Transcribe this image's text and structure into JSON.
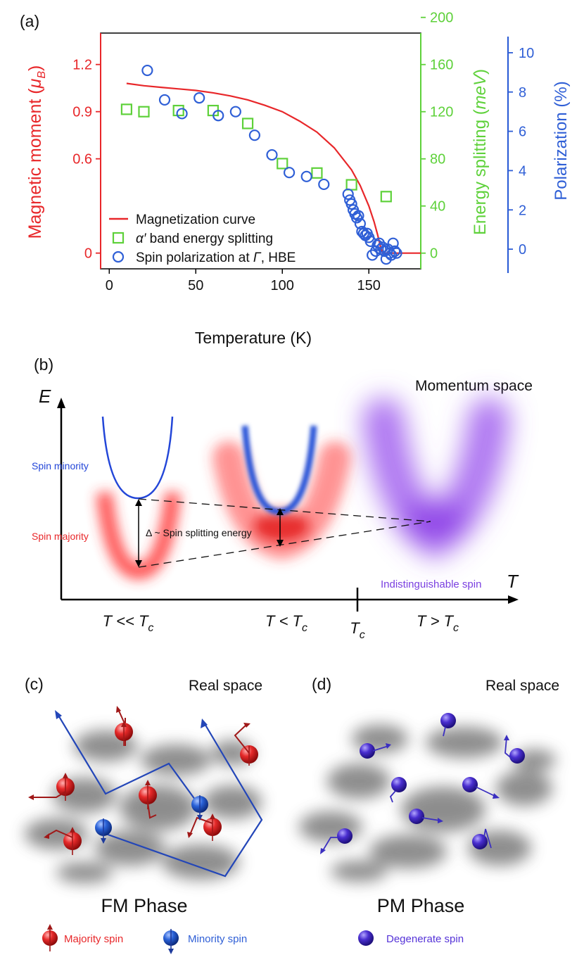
{
  "panel_a": {
    "label": "(a)",
    "chart_data": {
      "type": "scatter",
      "xlabel": "Temperature (K)",
      "xlim": [
        -5,
        180
      ],
      "xticks": [
        0,
        50,
        100,
        150
      ],
      "left_axis": {
        "label_prefix": "Magnetic moment (",
        "label_unit": "μ",
        "label_sub": "B",
        "label_suffix": ")",
        "color": "#e8272a",
        "ylim": [
          -0.1,
          1.4
        ],
        "ticks": [
          0,
          0.6,
          0.9,
          1.2
        ],
        "tick_labels": [
          "0",
          "0.6",
          "0.9",
          "1.2"
        ]
      },
      "middle_axis": {
        "label_prefix": "Energy splitting (",
        "label_unit": "meV",
        "label_suffix": ")",
        "color": "#5ed13a",
        "ylim": [
          -13.3,
          186.7
        ],
        "ticks": [
          0,
          40,
          80,
          120,
          160,
          200
        ],
        "tick_labels": [
          "0",
          "40",
          "80",
          "120",
          "160",
          "200"
        ]
      },
      "right_axis": {
        "label": "Polarization (%)",
        "color": "#2f5fd6",
        "ylim": [
          -1,
          11
        ],
        "ticks": [
          0,
          2,
          4,
          6,
          8,
          10
        ],
        "tick_labels": [
          "0",
          "2",
          "4",
          "6",
          "8",
          "10"
        ]
      },
      "series": [
        {
          "name": "Magnetization curve",
          "kind": "line",
          "axis": "left",
          "color": "#e8272a",
          "x": [
            10,
            20,
            30,
            40,
            50,
            60,
            70,
            80,
            90,
            100,
            110,
            120,
            130,
            140,
            145,
            150,
            153,
            155,
            157,
            158,
            160,
            170,
            180
          ],
          "y": [
            1.08,
            1.065,
            1.055,
            1.045,
            1.035,
            1.02,
            1.0,
            0.975,
            0.94,
            0.9,
            0.84,
            0.77,
            0.67,
            0.53,
            0.43,
            0.3,
            0.2,
            0.12,
            0.03,
            0.0,
            0.0,
            0.0,
            0.0
          ]
        },
        {
          "name": "α′ band energy splitting",
          "kind": "square",
          "axis": "middle",
          "color": "#5ed13a",
          "x": [
            10,
            20,
            40,
            60,
            80,
            100,
            120,
            140,
            160
          ],
          "y": [
            122,
            120,
            121,
            121,
            110,
            76,
            68,
            58,
            48
          ]
        },
        {
          "name": "Spin polarization at Γ, HBE",
          "kind": "circle",
          "axis": "right",
          "color": "#2f5fd6",
          "x": [
            22,
            32,
            42,
            52,
            63,
            73,
            84,
            94,
            104,
            114,
            124,
            138,
            139,
            140,
            141,
            142,
            143,
            144,
            145,
            146,
            147,
            148,
            149,
            150,
            151,
            152,
            154,
            155,
            156,
            157,
            158,
            159,
            160,
            161,
            162,
            163,
            164,
            165,
            166
          ],
          "y": [
            9.1,
            7.6,
            6.9,
            7.7,
            6.8,
            7.0,
            5.8,
            4.8,
            3.9,
            3.7,
            3.3,
            2.8,
            2.5,
            2.3,
            2.0,
            1.8,
            1.6,
            1.7,
            1.3,
            0.9,
            0.8,
            0.7,
            0.8,
            0.6,
            0.4,
            -0.3,
            -0.1,
            0.2,
            0.3,
            0.0,
            0.1,
            -0.1,
            -0.5,
            0.0,
            -0.2,
            -0.3,
            0.3,
            -0.1,
            -0.2
          ]
        }
      ],
      "legend": {
        "placement": "bottom-left",
        "items": [
          {
            "label": "Magnetization curve",
            "color": "#e8272a",
            "kind": "line"
          },
          {
            "label_prefix": "α′",
            "label_rest": " band energy splitting",
            "color": "#5ed13a",
            "kind": "square"
          },
          {
            "label_prefix": "Spin polarization at ",
            "label_italic": "Γ",
            "label_rest": ", HBE",
            "color": "#2f5fd6",
            "kind": "circle"
          }
        ]
      }
    }
  },
  "panel_b": {
    "label": "(b)",
    "title": "Momentum space",
    "axis_e": "E",
    "axis_t": "T",
    "spin_minority": "Spin minority",
    "spin_majority": "Spin majority",
    "delta_label": "Δ ~ Spin splitting energy",
    "indistinguishable": "Indistinguishable spin",
    "t_labels": [
      {
        "main": "T << T",
        "sub": "c"
      },
      {
        "main": "T < T",
        "sub": "c"
      },
      {
        "main": "T",
        "sub": "c"
      },
      {
        "main": "T > T",
        "sub": "c"
      }
    ]
  },
  "panel_c": {
    "label": "(c)",
    "title": "Real space",
    "phase": "FM Phase"
  },
  "panel_d": {
    "label": "(d)",
    "title": "Real space",
    "phase": "PM Phase"
  },
  "legend_bottom": {
    "majority": "Majority spin",
    "minority": "Minority spin",
    "degenerate": "Degenerate spin"
  },
  "colors": {
    "red": "#e8272a",
    "green": "#5ed13a",
    "blue": "#2f5fd6",
    "purple": "#8a3fe6",
    "dark_red": "#a01818",
    "navy": "#2b3ab8"
  }
}
